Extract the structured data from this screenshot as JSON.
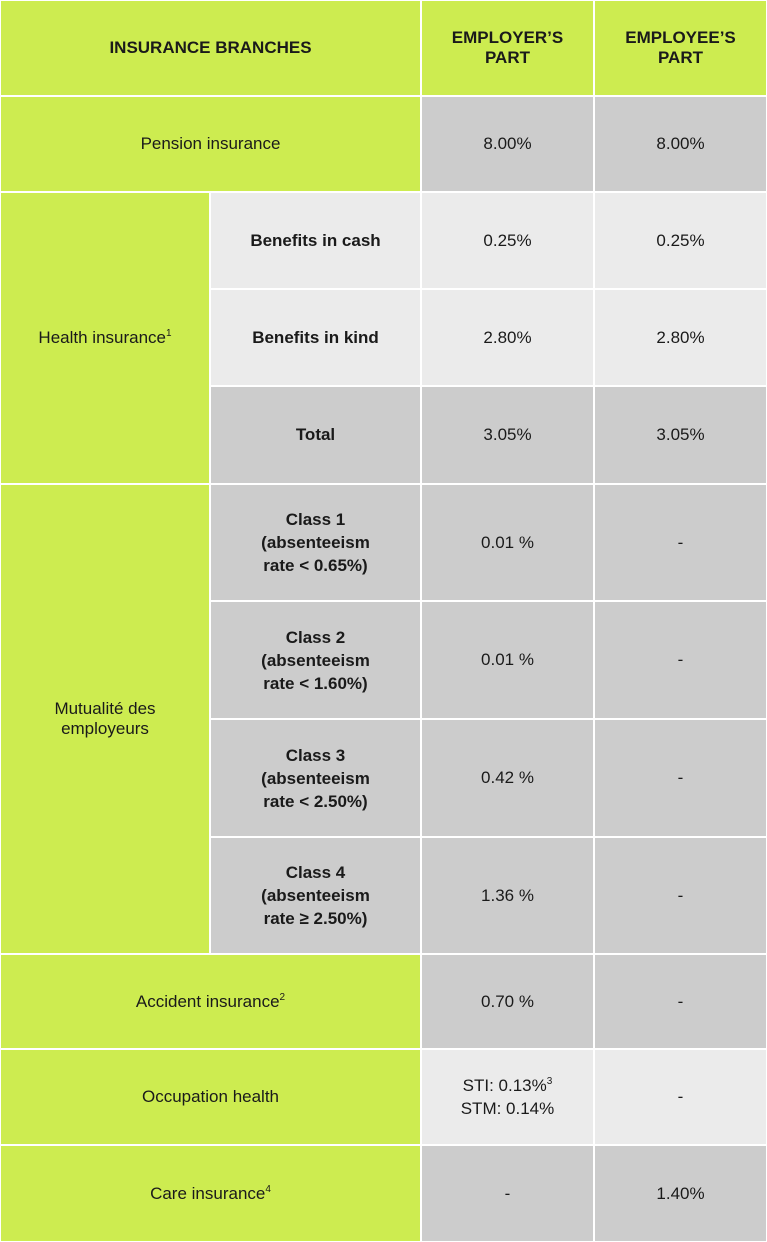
{
  "header": {
    "branches": "INSURANCE BRANCHES",
    "employer": "EMPLOYER’S PART",
    "employee": "EMPLOYEE’S PART"
  },
  "pension": {
    "label": "Pension insurance",
    "employer": "8.00%",
    "employee": "8.00%"
  },
  "health": {
    "label": "Health insurance",
    "note": "1",
    "rows": [
      {
        "label": "Benefits in cash",
        "employer": "0.25%",
        "employee": "0.25%"
      },
      {
        "label": "Benefits in kind",
        "employer": "2.80%",
        "employee": "2.80%"
      },
      {
        "label": "Total",
        "employer": "3.05%",
        "employee": "3.05%"
      }
    ]
  },
  "mutualite": {
    "label": "Mutualité des employeurs",
    "rows": [
      {
        "label": "Class 1 (absenteeism rate < 0.65%)",
        "employer": "0.01 %",
        "employee": "-"
      },
      {
        "label": "Class 2 (absenteeism rate < 1.60%)",
        "employer": "0.01 %",
        "employee": "-"
      },
      {
        "label": "Class 3 (absenteeism rate < 2.50%)",
        "employer": "0.42 %",
        "employee": "-"
      },
      {
        "label": "Class 4 (absenteeism rate ≥ 2.50%)",
        "employer": "1.36 %",
        "employee": "-"
      }
    ]
  },
  "accident": {
    "label": "Accident insurance",
    "note": "2",
    "employer": "0.70 %",
    "employee": "-"
  },
  "occupation": {
    "label": "Occupation health",
    "employer": {
      "sti": "STI: 0.13%",
      "note": "3",
      "stm": "STM: 0.14%"
    },
    "employee": "-"
  },
  "care": {
    "label": "Care insurance",
    "note": "4",
    "employer": "-",
    "employee": "1.40%"
  }
}
